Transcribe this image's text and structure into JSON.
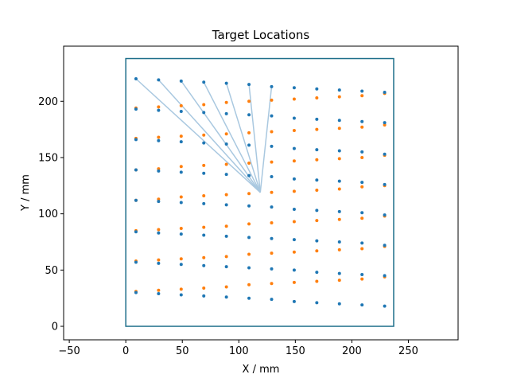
{
  "chart_data": {
    "type": "scatter",
    "title": "Target Locations",
    "xlabel": "X / mm",
    "ylabel": "Y / mm",
    "xlim": [
      -55,
      294
    ],
    "ylim": [
      -12,
      249
    ],
    "xticks": [
      -50,
      0,
      50,
      100,
      150,
      200,
      250
    ],
    "yticks": [
      0,
      50,
      100,
      150,
      200
    ],
    "grid": false,
    "colors": {
      "blue": "#1f77b4",
      "orange": "#ff7f0e",
      "frame": "#1f6f8b",
      "lines": "#a9c8e0"
    },
    "workspace_frame": {
      "x": [
        0,
        237
      ],
      "y": [
        0,
        238
      ]
    },
    "fan_origin": [
      119,
      119
    ],
    "fan_targets": [
      [
        9,
        220
      ],
      [
        29,
        219
      ],
      [
        49,
        218
      ],
      [
        69,
        217
      ],
      [
        89,
        216
      ],
      [
        109,
        215
      ],
      [
        129,
        213
      ]
    ],
    "series": [
      {
        "color": "#ff7f0e",
        "points": [
          [
            9,
            194
          ],
          [
            29,
            195
          ],
          [
            49,
            196
          ],
          [
            69,
            197
          ],
          [
            89,
            199
          ],
          [
            109,
            200
          ],
          [
            129,
            201
          ],
          [
            149,
            202
          ],
          [
            169,
            203
          ],
          [
            189,
            204
          ],
          [
            209,
            205
          ],
          [
            229,
            207
          ],
          [
            9,
            167
          ],
          [
            29,
            168
          ],
          [
            49,
            169
          ],
          [
            69,
            170
          ],
          [
            89,
            171
          ],
          [
            109,
            172
          ],
          [
            129,
            173
          ],
          [
            149,
            174
          ],
          [
            169,
            175
          ],
          [
            189,
            176
          ],
          [
            209,
            177
          ],
          [
            229,
            179
          ],
          [
            9,
            139
          ],
          [
            29,
            140
          ],
          [
            49,
            142
          ],
          [
            69,
            143
          ],
          [
            89,
            144
          ],
          [
            109,
            145
          ],
          [
            129,
            146
          ],
          [
            149,
            147
          ],
          [
            169,
            148
          ],
          [
            189,
            149
          ],
          [
            209,
            150
          ],
          [
            229,
            152
          ],
          [
            9,
            112
          ],
          [
            29,
            113
          ],
          [
            49,
            115
          ],
          [
            69,
            116
          ],
          [
            89,
            117
          ],
          [
            109,
            118
          ],
          [
            129,
            119
          ],
          [
            149,
            120
          ],
          [
            169,
            121
          ],
          [
            189,
            122
          ],
          [
            209,
            124
          ],
          [
            229,
            125
          ],
          [
            9,
            85
          ],
          [
            29,
            86
          ],
          [
            49,
            87
          ],
          [
            69,
            88
          ],
          [
            89,
            89
          ],
          [
            109,
            91
          ],
          [
            129,
            92
          ],
          [
            149,
            93
          ],
          [
            169,
            94
          ],
          [
            189,
            95
          ],
          [
            209,
            96
          ],
          [
            229,
            98
          ],
          [
            9,
            58
          ],
          [
            29,
            59
          ],
          [
            49,
            60
          ],
          [
            69,
            61
          ],
          [
            89,
            62
          ],
          [
            109,
            64
          ],
          [
            129,
            65
          ],
          [
            149,
            66
          ],
          [
            169,
            67
          ],
          [
            189,
            68
          ],
          [
            209,
            69
          ],
          [
            229,
            71
          ],
          [
            9,
            31
          ],
          [
            29,
            32
          ],
          [
            49,
            33
          ],
          [
            69,
            34
          ],
          [
            89,
            35
          ],
          [
            109,
            37
          ],
          [
            129,
            38
          ],
          [
            149,
            39
          ],
          [
            169,
            40
          ],
          [
            189,
            41
          ],
          [
            209,
            42
          ],
          [
            229,
            44
          ]
        ]
      },
      {
        "color": "#1f77b4",
        "points": [
          [
            9,
            220
          ],
          [
            29,
            219
          ],
          [
            49,
            218
          ],
          [
            69,
            217
          ],
          [
            89,
            216
          ],
          [
            109,
            215
          ],
          [
            129,
            213
          ],
          [
            149,
            212
          ],
          [
            169,
            211
          ],
          [
            189,
            210
          ],
          [
            209,
            209
          ],
          [
            229,
            208
          ],
          [
            9,
            193
          ],
          [
            29,
            192
          ],
          [
            49,
            191
          ],
          [
            69,
            190
          ],
          [
            89,
            189
          ],
          [
            109,
            188
          ],
          [
            129,
            187
          ],
          [
            149,
            185
          ],
          [
            169,
            184
          ],
          [
            189,
            183
          ],
          [
            209,
            182
          ],
          [
            229,
            181
          ],
          [
            9,
            166
          ],
          [
            29,
            165
          ],
          [
            49,
            164
          ],
          [
            69,
            163
          ],
          [
            89,
            162
          ],
          [
            109,
            161
          ],
          [
            129,
            160
          ],
          [
            149,
            158
          ],
          [
            169,
            157
          ],
          [
            189,
            156
          ],
          [
            209,
            155
          ],
          [
            229,
            153
          ],
          [
            9,
            139
          ],
          [
            29,
            138
          ],
          [
            49,
            137
          ],
          [
            69,
            136
          ],
          [
            89,
            135
          ],
          [
            109,
            134
          ],
          [
            129,
            133
          ],
          [
            149,
            131
          ],
          [
            169,
            130
          ],
          [
            189,
            129
          ],
          [
            209,
            128
          ],
          [
            229,
            126
          ],
          [
            9,
            112
          ],
          [
            29,
            111
          ],
          [
            49,
            110
          ],
          [
            69,
            109
          ],
          [
            89,
            108
          ],
          [
            109,
            107
          ],
          [
            129,
            106
          ],
          [
            149,
            104
          ],
          [
            169,
            103
          ],
          [
            189,
            102
          ],
          [
            209,
            101
          ],
          [
            229,
            99
          ],
          [
            9,
            84
          ],
          [
            29,
            83
          ],
          [
            49,
            82
          ],
          [
            69,
            81
          ],
          [
            89,
            80
          ],
          [
            109,
            79
          ],
          [
            129,
            78
          ],
          [
            149,
            77
          ],
          [
            169,
            76
          ],
          [
            189,
            75
          ],
          [
            209,
            74
          ],
          [
            229,
            72
          ],
          [
            9,
            57
          ],
          [
            29,
            56
          ],
          [
            49,
            55
          ],
          [
            69,
            54
          ],
          [
            89,
            53
          ],
          [
            109,
            52
          ],
          [
            129,
            51
          ],
          [
            149,
            50
          ],
          [
            169,
            48
          ],
          [
            189,
            47
          ],
          [
            209,
            46
          ],
          [
            229,
            45
          ],
          [
            9,
            30
          ],
          [
            29,
            29
          ],
          [
            49,
            28
          ],
          [
            69,
            27
          ],
          [
            89,
            26
          ],
          [
            109,
            25
          ],
          [
            129,
            24
          ],
          [
            149,
            22
          ],
          [
            169,
            21
          ],
          [
            189,
            20
          ],
          [
            209,
            19
          ],
          [
            229,
            18
          ]
        ]
      }
    ]
  }
}
